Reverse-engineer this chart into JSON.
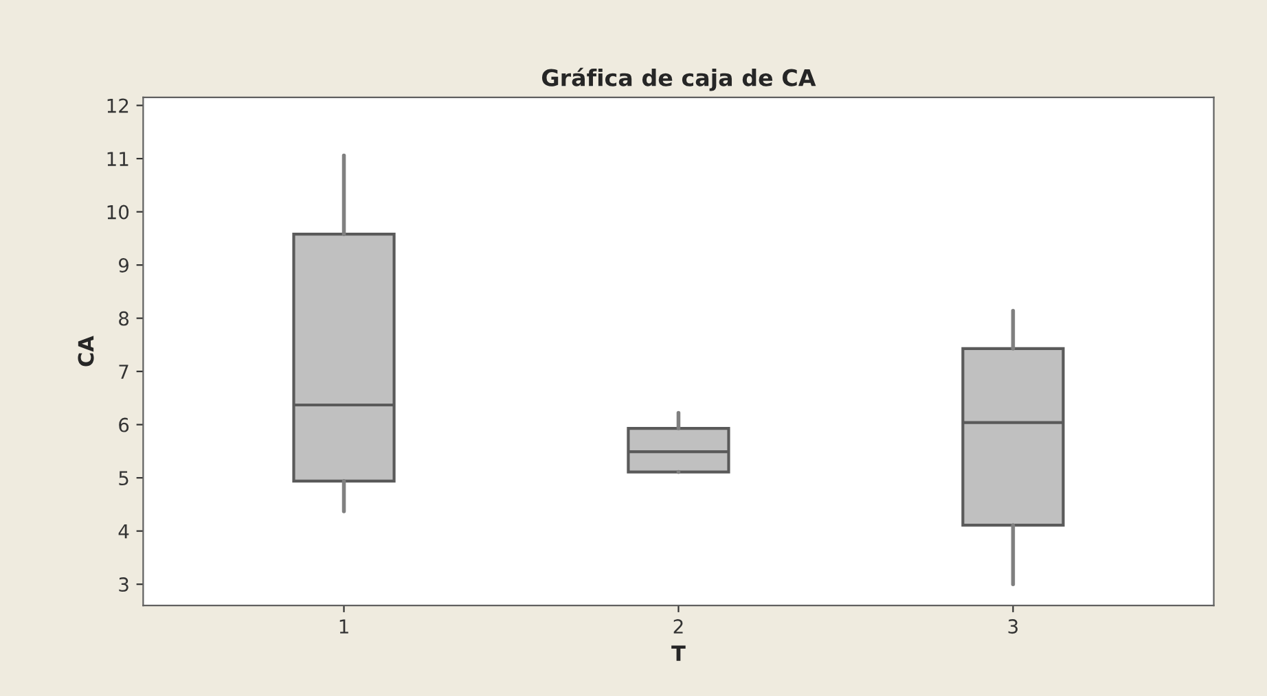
{
  "chart_data": {
    "type": "box",
    "title": "Gráfica de caja de CA",
    "xlabel": "T",
    "ylabel": "CA",
    "categories": [
      "1",
      "2",
      "3"
    ],
    "boxes": [
      {
        "low": 4.37,
        "q1": 4.94,
        "median": 6.37,
        "q3": 9.58,
        "high": 11.06
      },
      {
        "low": 5.11,
        "q1": 5.11,
        "median": 5.49,
        "q3": 5.93,
        "high": 6.22
      },
      {
        "low": 3.0,
        "q1": 4.11,
        "median": 6.04,
        "q3": 7.43,
        "high": 8.14
      }
    ],
    "color": "#c0c0c0",
    "ylim": [
      2.6,
      12.15
    ],
    "yticks": [
      3,
      4,
      5,
      6,
      7,
      8,
      9,
      10,
      11,
      12
    ],
    "grid": false
  }
}
